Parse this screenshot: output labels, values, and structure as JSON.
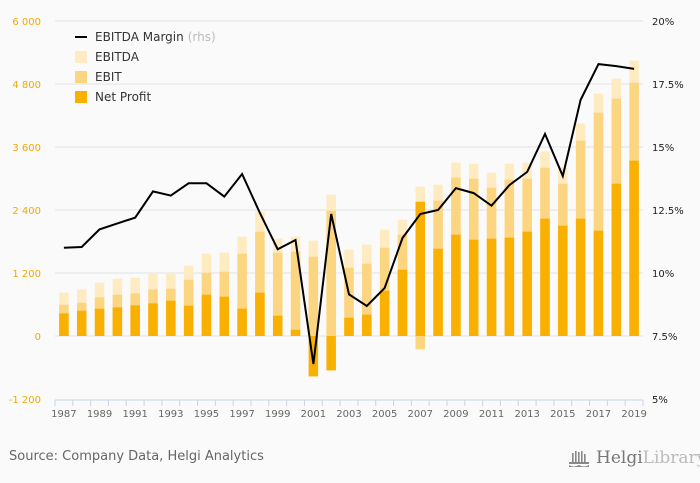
{
  "chart_data": {
    "type": "bar",
    "stacking": "overlay",
    "x": [
      "1987",
      "1988",
      "1989",
      "1990",
      "1991",
      "1992",
      "1993",
      "1994",
      "1995",
      "1996",
      "1997",
      "1998",
      "1999",
      "2000",
      "2001",
      "2002",
      "2003",
      "2004",
      "2005",
      "2006",
      "2007",
      "2008",
      "2009",
      "2010",
      "2011",
      "2012",
      "2013",
      "2014",
      "2015",
      "2016",
      "2017",
      "2018",
      "2019"
    ],
    "x_tick_labels": [
      "1987",
      "1989",
      "1991",
      "1993",
      "1995",
      "1997",
      "1999",
      "2001",
      "2003",
      "2005",
      "2007",
      "2009",
      "2011",
      "2013",
      "2015",
      "2017",
      "2019"
    ],
    "series": [
      {
        "name": "EBITDA",
        "type": "bar",
        "axis": "left",
        "color": "#feebc2",
        "values": [
          825,
          888,
          1015,
          1092,
          1111,
          1181,
          1181,
          1339,
          1568,
          1587,
          1892,
          2368,
          1854,
          1892,
          1816,
          2692,
          1644,
          1740,
          2025,
          2216,
          2844,
          2882,
          3301,
          3282,
          3111,
          3282,
          3301,
          3511,
          3206,
          4045,
          4616,
          4902,
          5245
        ]
      },
      {
        "name": "EBIT",
        "type": "bar",
        "axis": "left",
        "color": "#fcd581",
        "values": [
          596,
          634,
          736,
          787,
          812,
          888,
          901,
          1072,
          1206,
          1225,
          1568,
          1987,
          1587,
          1606,
          1511,
          2387,
          1301,
          1377,
          1682,
          1930,
          -255,
          2577,
          3016,
          2996,
          2825,
          2977,
          2996,
          3206,
          2901,
          3721,
          4254,
          4521,
          4826
        ]
      },
      {
        "name": "Net Profit",
        "type": "bar",
        "axis": "left",
        "color": "#f9b000",
        "values": [
          430,
          482,
          520,
          545,
          583,
          621,
          672,
          577,
          787,
          749,
          520,
          825,
          387,
          120,
          -770,
          -655,
          349,
          406,
          863,
          1263,
          2558,
          1663,
          1930,
          1834,
          1854,
          1873,
          1987,
          2235,
          2101,
          2235,
          2006,
          2901,
          3339
        ]
      },
      {
        "name": "EBITDA Margin",
        "legend_suffix": "(rhs)",
        "type": "line",
        "axis": "right",
        "color": "#000000",
        "values": [
          11.0,
          11.03,
          11.73,
          11.97,
          12.2,
          13.24,
          13.07,
          13.56,
          13.56,
          13.03,
          13.93,
          12.38,
          10.94,
          11.31,
          6.39,
          12.34,
          9.15,
          8.69,
          9.4,
          11.39,
          12.34,
          12.5,
          13.37,
          13.17,
          12.67,
          13.49,
          14.01,
          15.52,
          13.85,
          16.87,
          18.29,
          18.21,
          18.1
        ]
      }
    ],
    "y_left": {
      "ylim": [
        -1200,
        6000
      ],
      "ticks": [
        -1200,
        0,
        1200,
        2400,
        3600,
        4800,
        6000
      ],
      "tick_labels": [
        "-1 200",
        "0",
        "1 200",
        "2 400",
        "3 600",
        "4 800",
        "6 000"
      ]
    },
    "y_right": {
      "ylim": [
        5,
        20
      ],
      "ticks": [
        5,
        7.5,
        10,
        12.5,
        15,
        17.5,
        20
      ],
      "tick_labels": [
        "5%",
        "7.5%",
        "10%",
        "12.5%",
        "15%",
        "17.5%",
        "20%"
      ]
    },
    "title": "",
    "xlabel": "",
    "ylabel": "",
    "grid": true,
    "legend": "top-left"
  },
  "legend": {
    "items": [
      {
        "label": "EBITDA Margin",
        "suffix": "(rhs)"
      },
      {
        "label": "EBITDA"
      },
      {
        "label": "EBIT"
      },
      {
        "label": "Net Profit"
      }
    ]
  },
  "footer": {
    "source": "Source: Company Data, Helgi Analytics",
    "logo_bold": "Helgi",
    "logo_light": "Library."
  }
}
